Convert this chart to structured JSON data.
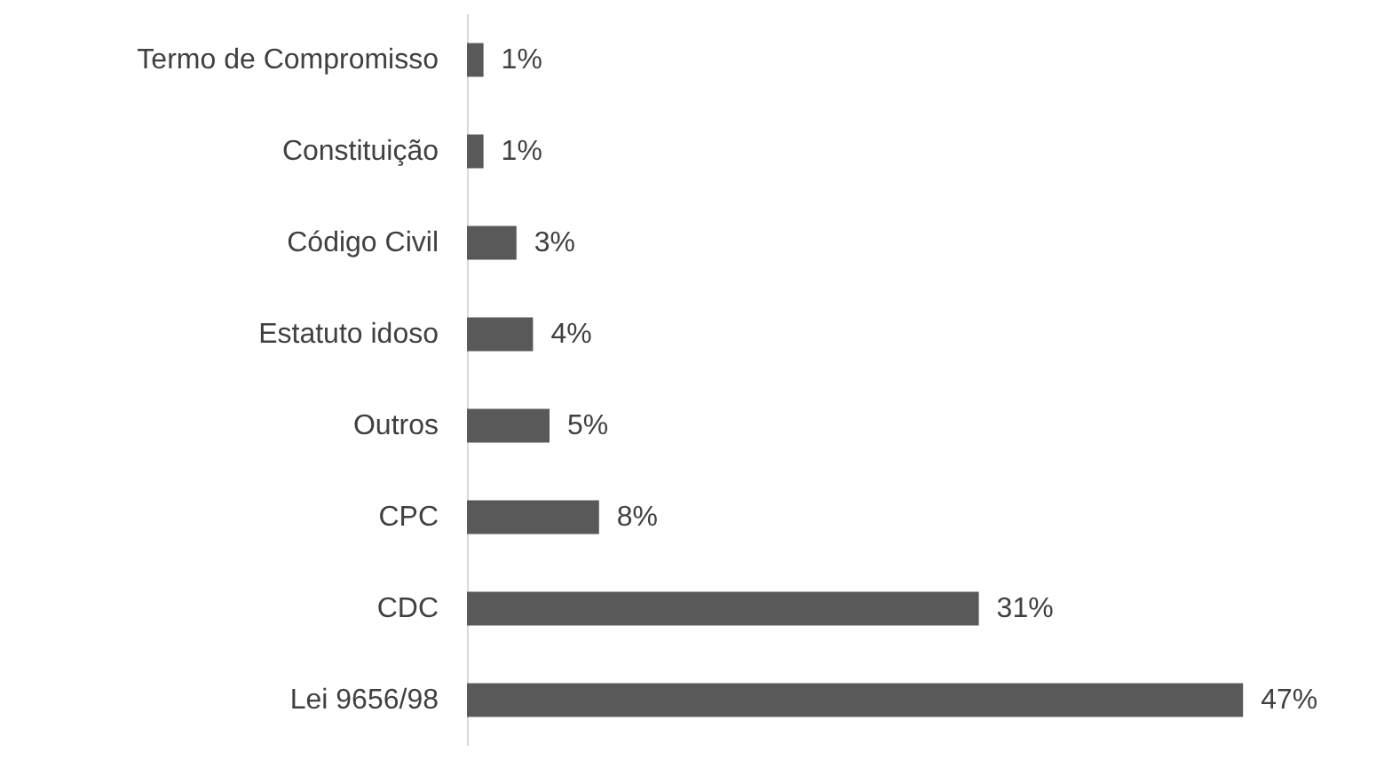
{
  "chart_data": {
    "type": "bar",
    "orientation": "horizontal",
    "categories": [
      "Termo de Compromisso",
      "Constituição",
      "Código Civil",
      "Estatuto idoso",
      "Outros",
      "CPC",
      "CDC",
      "Lei 9656/98"
    ],
    "values": [
      1,
      1,
      3,
      4,
      5,
      8,
      31,
      47
    ],
    "color": "#595959",
    "value_labels": [
      "1%",
      "1%",
      "3%",
      "4%",
      "5%",
      "8%",
      "31%",
      "47%"
    ]
  }
}
